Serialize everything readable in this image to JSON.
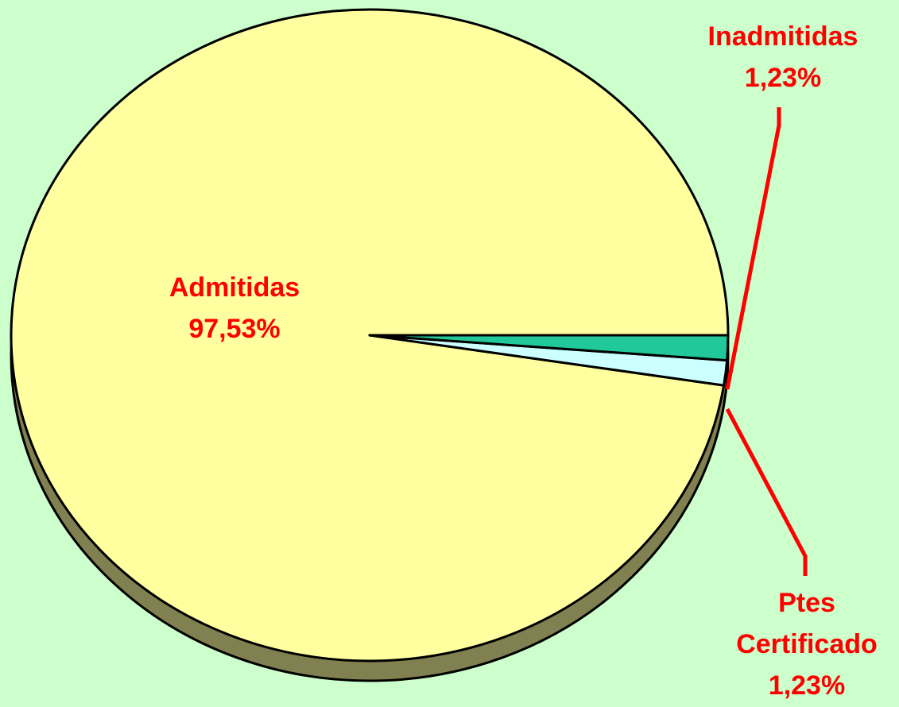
{
  "chart_data": {
    "type": "pie",
    "categories": [
      "Admitidas",
      "Inadmitidas",
      "Ptes Certificado"
    ],
    "values": [
      97.53,
      1.23,
      1.23
    ],
    "value_labels": [
      "97,53%",
      "1,23%",
      "1,23%"
    ],
    "colors": [
      "#ffffa0",
      "#ccffff",
      "#20c89a"
    ],
    "label_color": "#ff0000"
  }
}
